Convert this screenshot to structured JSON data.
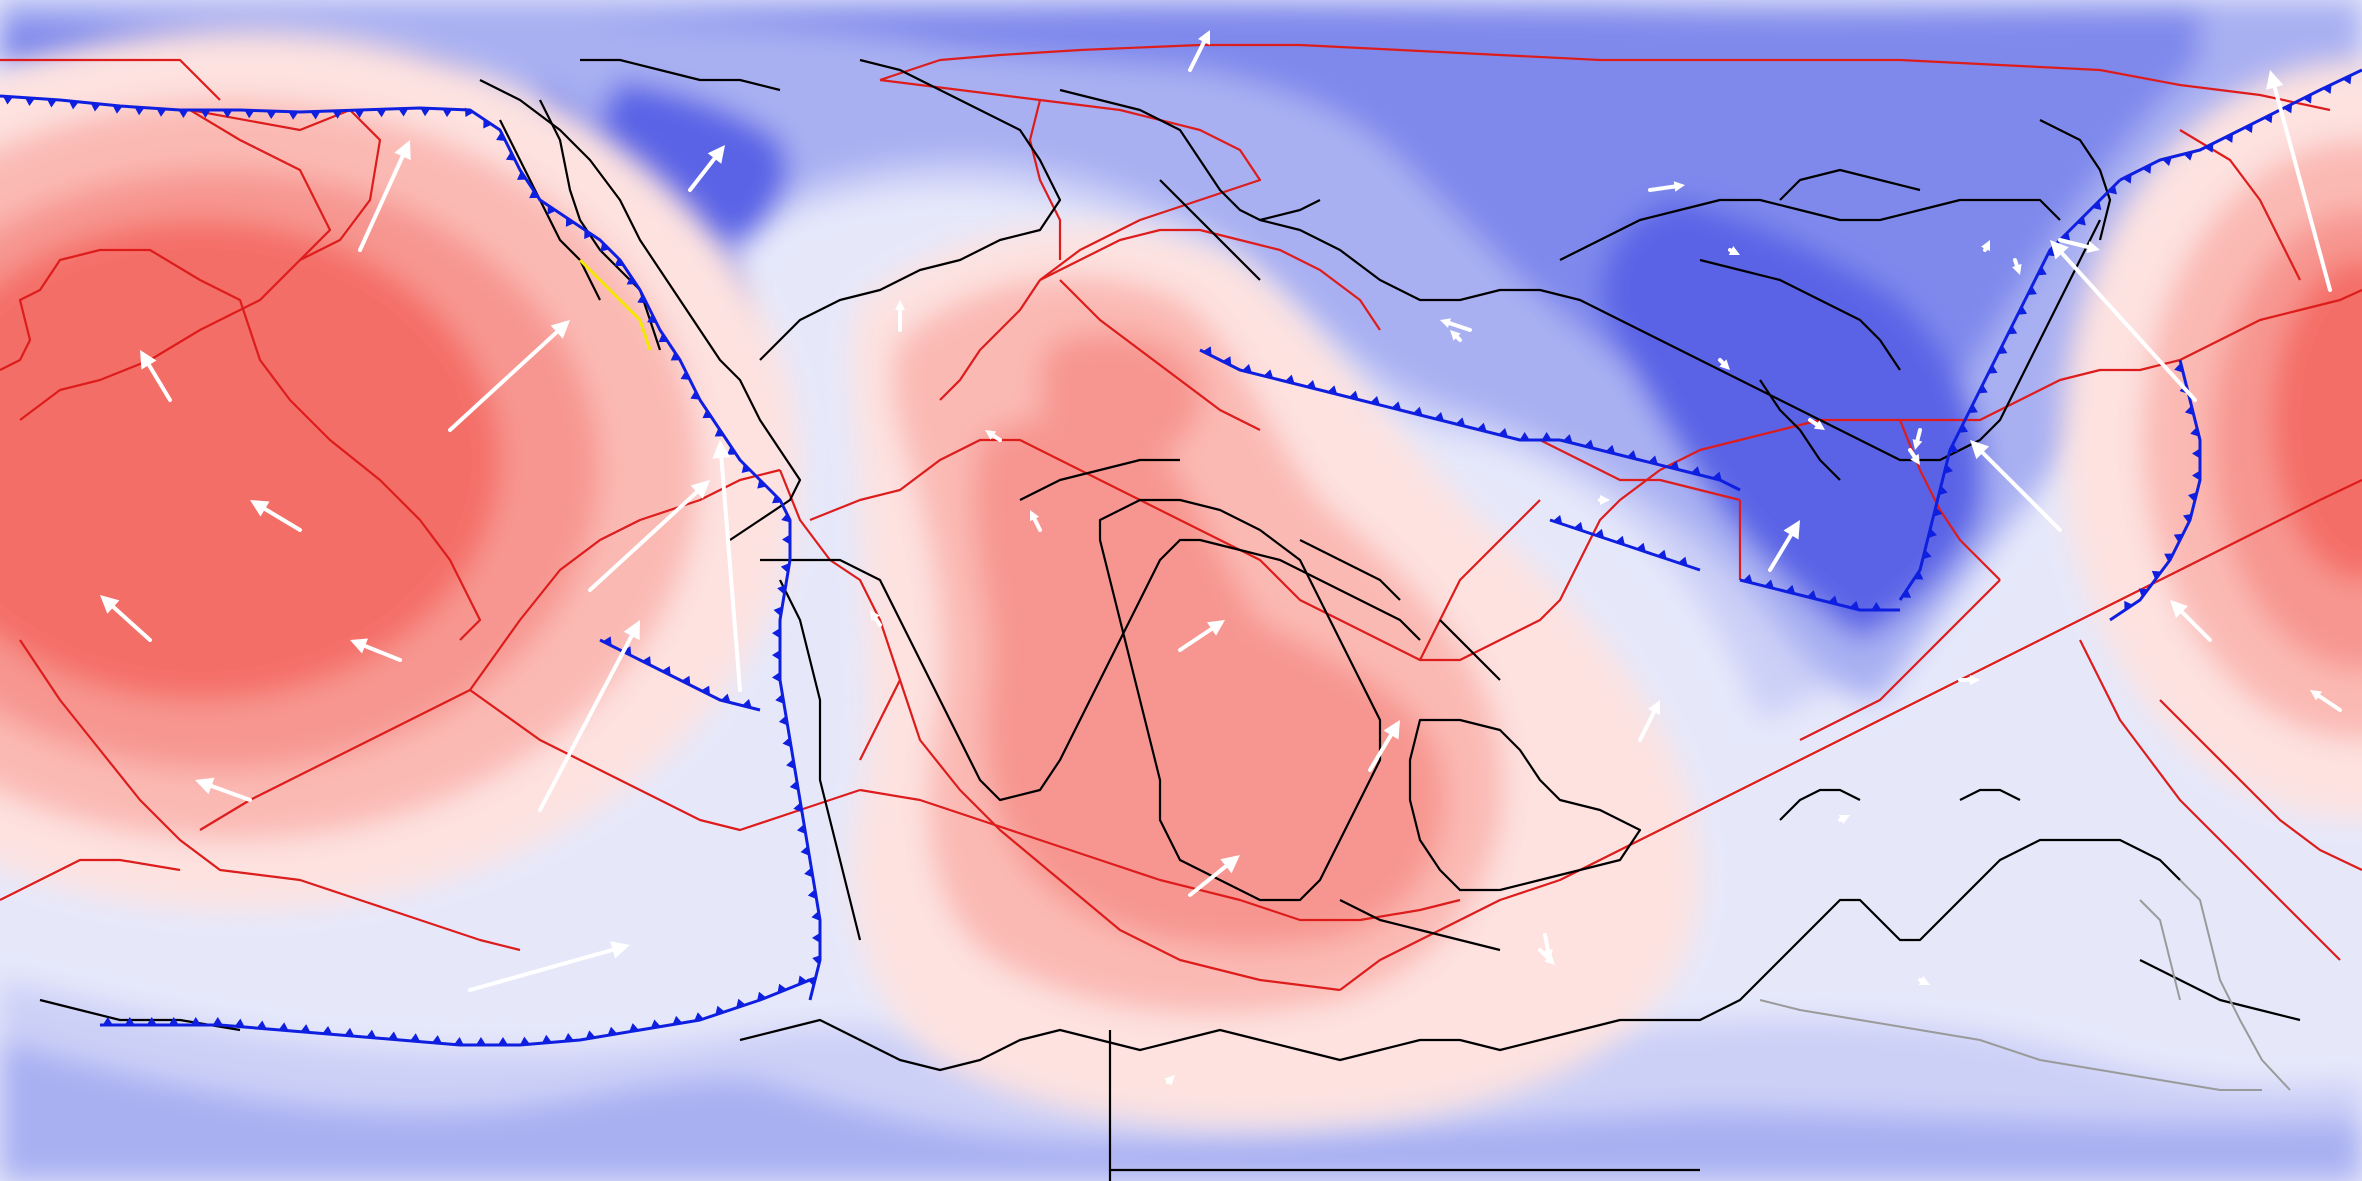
{
  "map": {
    "kind": "paleogeographic plate reconstruction",
    "projection": "equirectangular",
    "text_labels": [],
    "colors": {
      "ocean_background": "#e6e8fa",
      "blue_levels": [
        "#ccd0f7",
        "#a9b0f2",
        "#7f89ec",
        "#5a63e6"
      ],
      "red_levels": [
        "#fde2e0",
        "#fbb9b4",
        "#f79690",
        "#f46e68"
      ],
      "plate_boundary": "#dd1c1c",
      "subduction_zone": "#0f1fe0",
      "ridge_highlight": "#f4e800",
      "coastline": "#000000",
      "velocity_arrow": "#ffffff"
    },
    "features": {
      "velocity_field_shading": true,
      "plate_boundaries": true,
      "subduction_zones_with_teeth": true,
      "coastlines": true,
      "plate_velocity_arrows": true
    }
  }
}
